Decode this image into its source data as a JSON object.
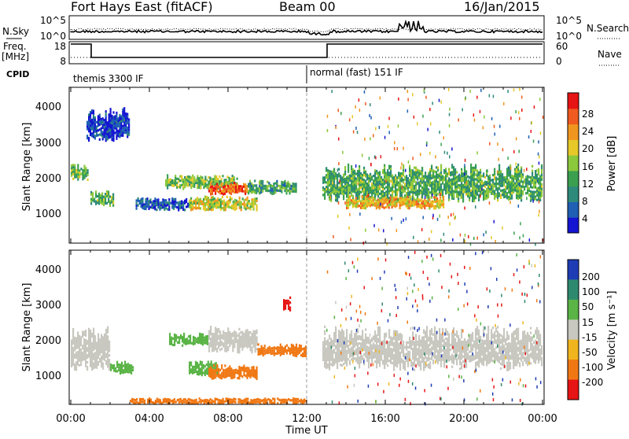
{
  "header": {
    "radar": "Fort Hays East (fitACF)",
    "beam": "Beam 00",
    "date": "16/Jan/2015"
  },
  "noise_panel": {
    "left_label": "N.Sky",
    "left_ticks": [
      "10^5",
      "10^0"
    ],
    "right_label": "N.Search",
    "right_ticks": [
      "10^5",
      "10^0"
    ]
  },
  "freq_panel": {
    "left_label": "Freq.",
    "left_unit": "[MHz]",
    "left_ticks": [
      "18",
      "8"
    ],
    "right_label": "Nave",
    "right_ticks": [
      "60",
      "0"
    ]
  },
  "cpid": {
    "label": "CPID",
    "segments": [
      {
        "name": "themis 3300 IF",
        "start_hour": 0,
        "end_hour": 12
      },
      {
        "name": "normal (fast) 151 IF",
        "start_hour": 12,
        "end_hour": 24
      }
    ]
  },
  "x_axis": {
    "label": "Time UT",
    "ticks": [
      "00:00",
      "04:00",
      "08:00",
      "12:00",
      "16:00",
      "20:00",
      "00:00"
    ]
  },
  "power_panel": {
    "ylabel": "Slant Range [km]",
    "yticks": [
      "4000",
      "3000",
      "2000",
      "1000"
    ],
    "colorbar_label": "Power [dB]",
    "colorbar_ticks": [
      "28",
      "24",
      "20",
      "16",
      "12",
      "8",
      "4"
    ]
  },
  "velocity_panel": {
    "ylabel": "Slant Range [km]",
    "yticks": [
      "4000",
      "3000",
      "2000",
      "1000"
    ],
    "colorbar_label": "Velocity [m s⁻¹]",
    "colorbar_ticks": [
      "200",
      "100",
      "50",
      "15",
      "-15",
      "-50",
      "-100",
      "-200"
    ]
  },
  "colors": {
    "power_scale": [
      "#1414d2",
      "#1f5fb4",
      "#2e8a7a",
      "#3aa050",
      "#8cc83c",
      "#e6c828",
      "#f0961e",
      "#f05a1e",
      "#e61414"
    ],
    "velocity_scale": [
      "#1e3cb4",
      "#2e8a6e",
      "#5ab446",
      "#c8c8c0",
      "#f0b41e",
      "#f07814",
      "#e61414"
    ]
  },
  "chart_data": [
    {
      "type": "heatmap",
      "title": "Power [dB]",
      "xlabel": "Time UT",
      "ylabel": "Slant Range [km]",
      "xlim": [
        0,
        24
      ],
      "ylim": [
        150,
        4550
      ],
      "zlim": [
        0,
        30
      ],
      "features": [
        {
          "t": [
            0.0,
            0.9
          ],
          "range": [
            1900,
            2400
          ],
          "value": 14
        },
        {
          "t": [
            1.0,
            2.2
          ],
          "range": [
            1150,
            1650
          ],
          "value": 13
        },
        {
          "t": [
            3.3,
            6.0
          ],
          "range": [
            1050,
            1450
          ],
          "value": 5
        },
        {
          "t": [
            4.8,
            8.5
          ],
          "range": [
            1650,
            2100
          ],
          "value": 14
        },
        {
          "t": [
            6.0,
            9.5
          ],
          "range": [
            1050,
            1500
          ],
          "value": 17
        },
        {
          "t": [
            7.0,
            9.0
          ],
          "range": [
            1500,
            1900
          ],
          "value": 25
        },
        {
          "t": [
            9.0,
            11.5
          ],
          "range": [
            1500,
            1950
          ],
          "value": 10
        },
        {
          "t": [
            12.8,
            24.0
          ],
          "range": [
            1300,
            2400
          ],
          "value": 12
        },
        {
          "t": [
            14.0,
            19.0
          ],
          "range": [
            1100,
            1500
          ],
          "value": 20
        },
        {
          "t": [
            0.8,
            3.0
          ],
          "range": [
            3000,
            4000
          ],
          "value": 3
        }
      ]
    },
    {
      "type": "heatmap",
      "title": "Velocity [m s⁻¹]",
      "xlabel": "Time UT",
      "ylabel": "Slant Range [km]",
      "xlim": [
        0,
        24
      ],
      "ylim": [
        150,
        4550
      ],
      "zlim": [
        -250,
        250
      ],
      "features": [
        {
          "t": [
            0.0,
            2.0
          ],
          "range": [
            1100,
            2400
          ],
          "value": 0
        },
        {
          "t": [
            2.0,
            3.2
          ],
          "range": [
            1000,
            1400
          ],
          "value": 30
        },
        {
          "t": [
            5.0,
            7.0
          ],
          "range": [
            1800,
            2200
          ],
          "value": 40
        },
        {
          "t": [
            6.0,
            7.5
          ],
          "range": [
            950,
            1400
          ],
          "value": 30
        },
        {
          "t": [
            7.0,
            9.5
          ],
          "range": [
            850,
            1300
          ],
          "value": -60
        },
        {
          "t": [
            7.0,
            9.5
          ],
          "range": [
            1600,
            2400
          ],
          "value": 0
        },
        {
          "t": [
            9.5,
            12.0
          ],
          "range": [
            1500,
            1900
          ],
          "value": -60
        },
        {
          "t": [
            10.8,
            11.2
          ],
          "range": [
            2800,
            3300
          ],
          "value": -200
        },
        {
          "t": [
            12.8,
            24.0
          ],
          "range": [
            1100,
            2400
          ],
          "value": 0
        },
        {
          "t": [
            3.0,
            12.0
          ],
          "range": [
            150,
            350
          ],
          "value": -60
        }
      ]
    }
  ]
}
